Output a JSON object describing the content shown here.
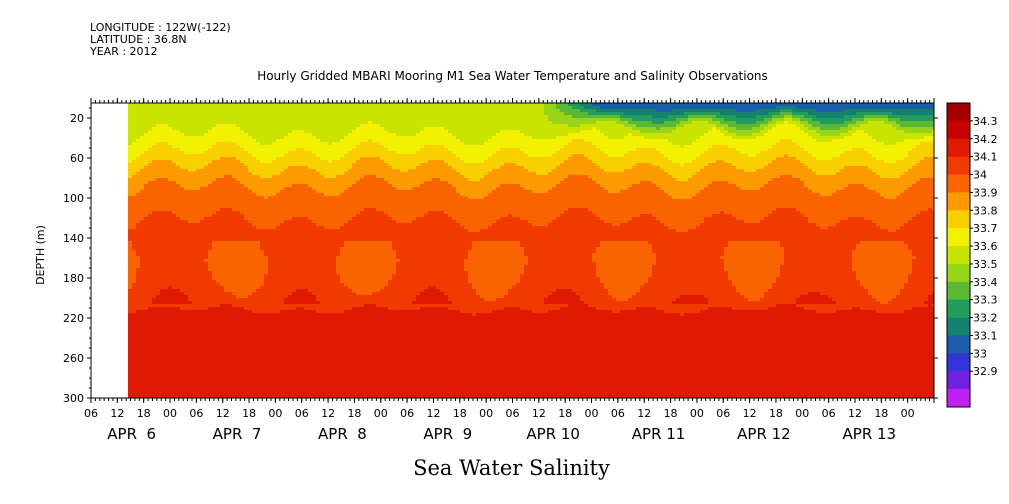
{
  "header": {
    "longitude": "LONGITUDE : 122W(-122)",
    "latitude": "LATITUDE : 36.8N",
    "year": "YEAR : 2012"
  },
  "bottom_title": "Sea Water Salinity",
  "chart_data": {
    "type": "heatmap",
    "title": "Hourly Gridded MBARI Mooring M1 Sea Water Temperature and Salinity Observations",
    "xlabel": "",
    "ylabel": "DEPTH (m)",
    "y_ticks": [
      20,
      60,
      100,
      140,
      180,
      220,
      260,
      300
    ],
    "ylim": [
      300,
      5
    ],
    "x_hour_ticks": [
      "06",
      "12",
      "18",
      "00",
      "06",
      "12",
      "18",
      "00",
      "06",
      "12",
      "18",
      "00",
      "06",
      "12",
      "18",
      "00",
      "06",
      "12",
      "18",
      "00",
      "06",
      "12",
      "18",
      "00",
      "06",
      "12",
      "18",
      "00",
      "06",
      "12",
      "18",
      "00"
    ],
    "x_date_labels": [
      "APR  6",
      "APR  7",
      "APR  8",
      "APR  9",
      "APR 10",
      "APR 11",
      "APR 12",
      "APR 13"
    ],
    "colorbar": {
      "levels": [
        "34.3",
        "34.2",
        "34.1",
        "34",
        "33.9",
        "33.8",
        "33.7",
        "33.6",
        "33.5",
        "33.4",
        "33.3",
        "33.2",
        "33.1",
        "33",
        "32.9"
      ],
      "colors": [
        "#a00000",
        "#c80000",
        "#e01a00",
        "#f03a00",
        "#fa6400",
        "#fc9a00",
        "#f8d000",
        "#f2f200",
        "#c8e400",
        "#98d418",
        "#5ab832",
        "#229c5a",
        "#148070",
        "#1a5eaa",
        "#3434d8",
        "#7020e0",
        "#c020f0"
      ]
    },
    "salinity_profile": [
      {
        "depth": 5,
        "salinity": 33.62
      },
      {
        "depth": 20,
        "salinity": 33.65
      },
      {
        "depth": 40,
        "salinity": 33.72
      },
      {
        "depth": 60,
        "salinity": 33.85
      },
      {
        "depth": 80,
        "salinity": 33.97
      },
      {
        "depth": 100,
        "salinity": 34.05
      },
      {
        "depth": 120,
        "salinity": 34.1
      },
      {
        "depth": 140,
        "salinity": 34.15
      },
      {
        "depth": 160,
        "salinity": 34.12
      },
      {
        "depth": 180,
        "salinity": 34.14
      },
      {
        "depth": 200,
        "salinity": 34.18
      },
      {
        "depth": 220,
        "salinity": 34.22
      },
      {
        "depth": 240,
        "salinity": 34.28
      },
      {
        "depth": 260,
        "salinity": 34.3
      },
      {
        "depth": 280,
        "salinity": 34.25
      },
      {
        "depth": 300,
        "salinity": 34.2
      }
    ],
    "surface_fresh_event": {
      "start": "APR 10 06",
      "surface_salinity": 33.1
    }
  }
}
